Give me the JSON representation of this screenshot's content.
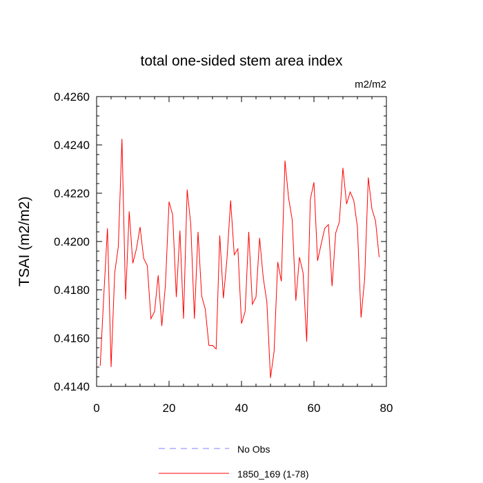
{
  "chart_data": {
    "type": "line",
    "title": "total one-sided stem area index",
    "units": "m2/m2",
    "ylabel": "TSAI  (m2/m2)",
    "xlabel": "",
    "xlim": [
      0,
      80
    ],
    "ylim": [
      0.414,
      0.426
    ],
    "x_ticks": [
      0,
      20,
      40,
      60,
      80
    ],
    "x_tick_labels": [
      "0",
      "20",
      "40",
      "60",
      "80"
    ],
    "y_ticks": [
      0.414,
      0.416,
      0.418,
      0.42,
      0.422,
      0.424,
      0.426
    ],
    "y_tick_labels": [
      "0.4140",
      "0.4160",
      "0.4180",
      "0.4200",
      "0.4220",
      "0.4240",
      "0.4260"
    ],
    "grid": false,
    "legend_position": "bottom",
    "series": [
      {
        "name": "No Obs",
        "color": "#8080ff",
        "dash": "dashed",
        "values": []
      },
      {
        "name": "1850_169 (1-78)",
        "color": "#ff0000",
        "dash": "solid",
        "x": [
          1,
          2,
          3,
          4,
          5,
          6,
          7,
          8,
          9,
          10,
          11,
          12,
          13,
          14,
          15,
          16,
          17,
          18,
          19,
          20,
          21,
          22,
          23,
          24,
          25,
          26,
          27,
          28,
          29,
          30,
          31,
          32,
          33,
          34,
          35,
          36,
          37,
          38,
          39,
          40,
          41,
          42,
          43,
          44,
          45,
          46,
          47,
          48,
          49,
          50,
          51,
          52,
          53,
          54,
          55,
          56,
          57,
          58,
          59,
          60,
          61,
          62,
          63,
          64,
          65,
          66,
          67,
          68,
          69,
          70,
          71,
          72,
          73,
          74,
          75,
          76,
          77,
          78
        ],
        "values": [
          0.41485,
          0.4178,
          0.42055,
          0.4148,
          0.4187,
          0.4198,
          0.42425,
          0.4176,
          0.42125,
          0.4191,
          0.4197,
          0.4206,
          0.4193,
          0.419,
          0.4168,
          0.4171,
          0.4186,
          0.4165,
          0.4182,
          0.42165,
          0.4211,
          0.4177,
          0.42045,
          0.4168,
          0.42215,
          0.4207,
          0.4168,
          0.4204,
          0.41775,
          0.4172,
          0.4157,
          0.4157,
          0.41555,
          0.42025,
          0.41765,
          0.4193,
          0.4217,
          0.41945,
          0.4197,
          0.4166,
          0.4171,
          0.4204,
          0.4174,
          0.4177,
          0.42015,
          0.4185,
          0.4175,
          0.41435,
          0.41545,
          0.41915,
          0.41835,
          0.42335,
          0.4218,
          0.4209,
          0.41755,
          0.41935,
          0.4187,
          0.41585,
          0.42175,
          0.42245,
          0.4192,
          0.4199,
          0.42055,
          0.4207,
          0.41815,
          0.42035,
          0.4208,
          0.42305,
          0.42155,
          0.42205,
          0.4217,
          0.4206,
          0.41685,
          0.41845,
          0.42265,
          0.42135,
          0.42085,
          0.41935
        ]
      }
    ]
  }
}
